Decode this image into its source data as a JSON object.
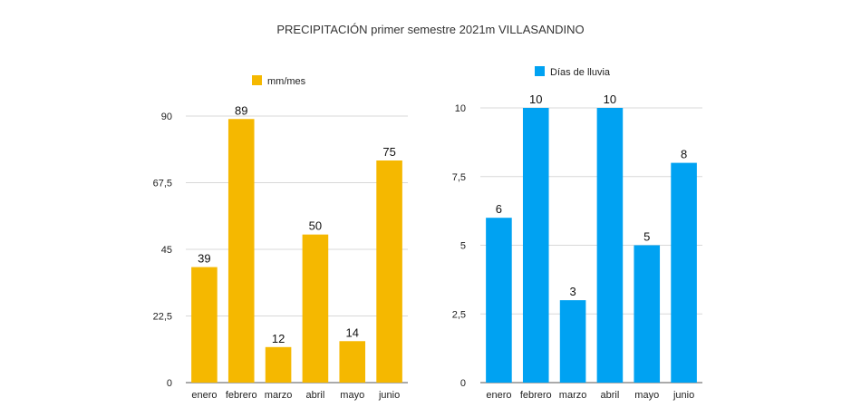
{
  "title": "PRECIPITACIÓN primer semestre 2021m VILLASANDINO",
  "chart_data": [
    {
      "type": "bar",
      "categories": [
        "enero",
        "febrero",
        "marzo",
        "abril",
        "mayo",
        "junio"
      ],
      "series": [
        {
          "name": "mm/mes",
          "values": [
            39,
            89,
            12,
            50,
            14,
            75
          ]
        }
      ],
      "ylim": [
        0,
        90
      ],
      "yticks": [
        0,
        22.5,
        45,
        67.5,
        90
      ],
      "ytick_labels": [
        "0",
        "22,5",
        "45",
        "67,5",
        "90"
      ],
      "color": "#F5B800",
      "legend_position": "top",
      "grid": true
    },
    {
      "type": "bar",
      "categories": [
        "enero",
        "febrero",
        "marzo",
        "abril",
        "mayo",
        "junio"
      ],
      "series": [
        {
          "name": "Días de lluvia",
          "values": [
            6,
            10,
            3,
            10,
            5,
            8
          ]
        }
      ],
      "ylim": [
        0,
        10
      ],
      "yticks": [
        0,
        2.5,
        5,
        7.5,
        10
      ],
      "ytick_labels": [
        "0",
        "2,5",
        "5",
        "7,5",
        "10"
      ],
      "color": "#00A2F2",
      "legend_position": "top",
      "grid": true
    }
  ]
}
